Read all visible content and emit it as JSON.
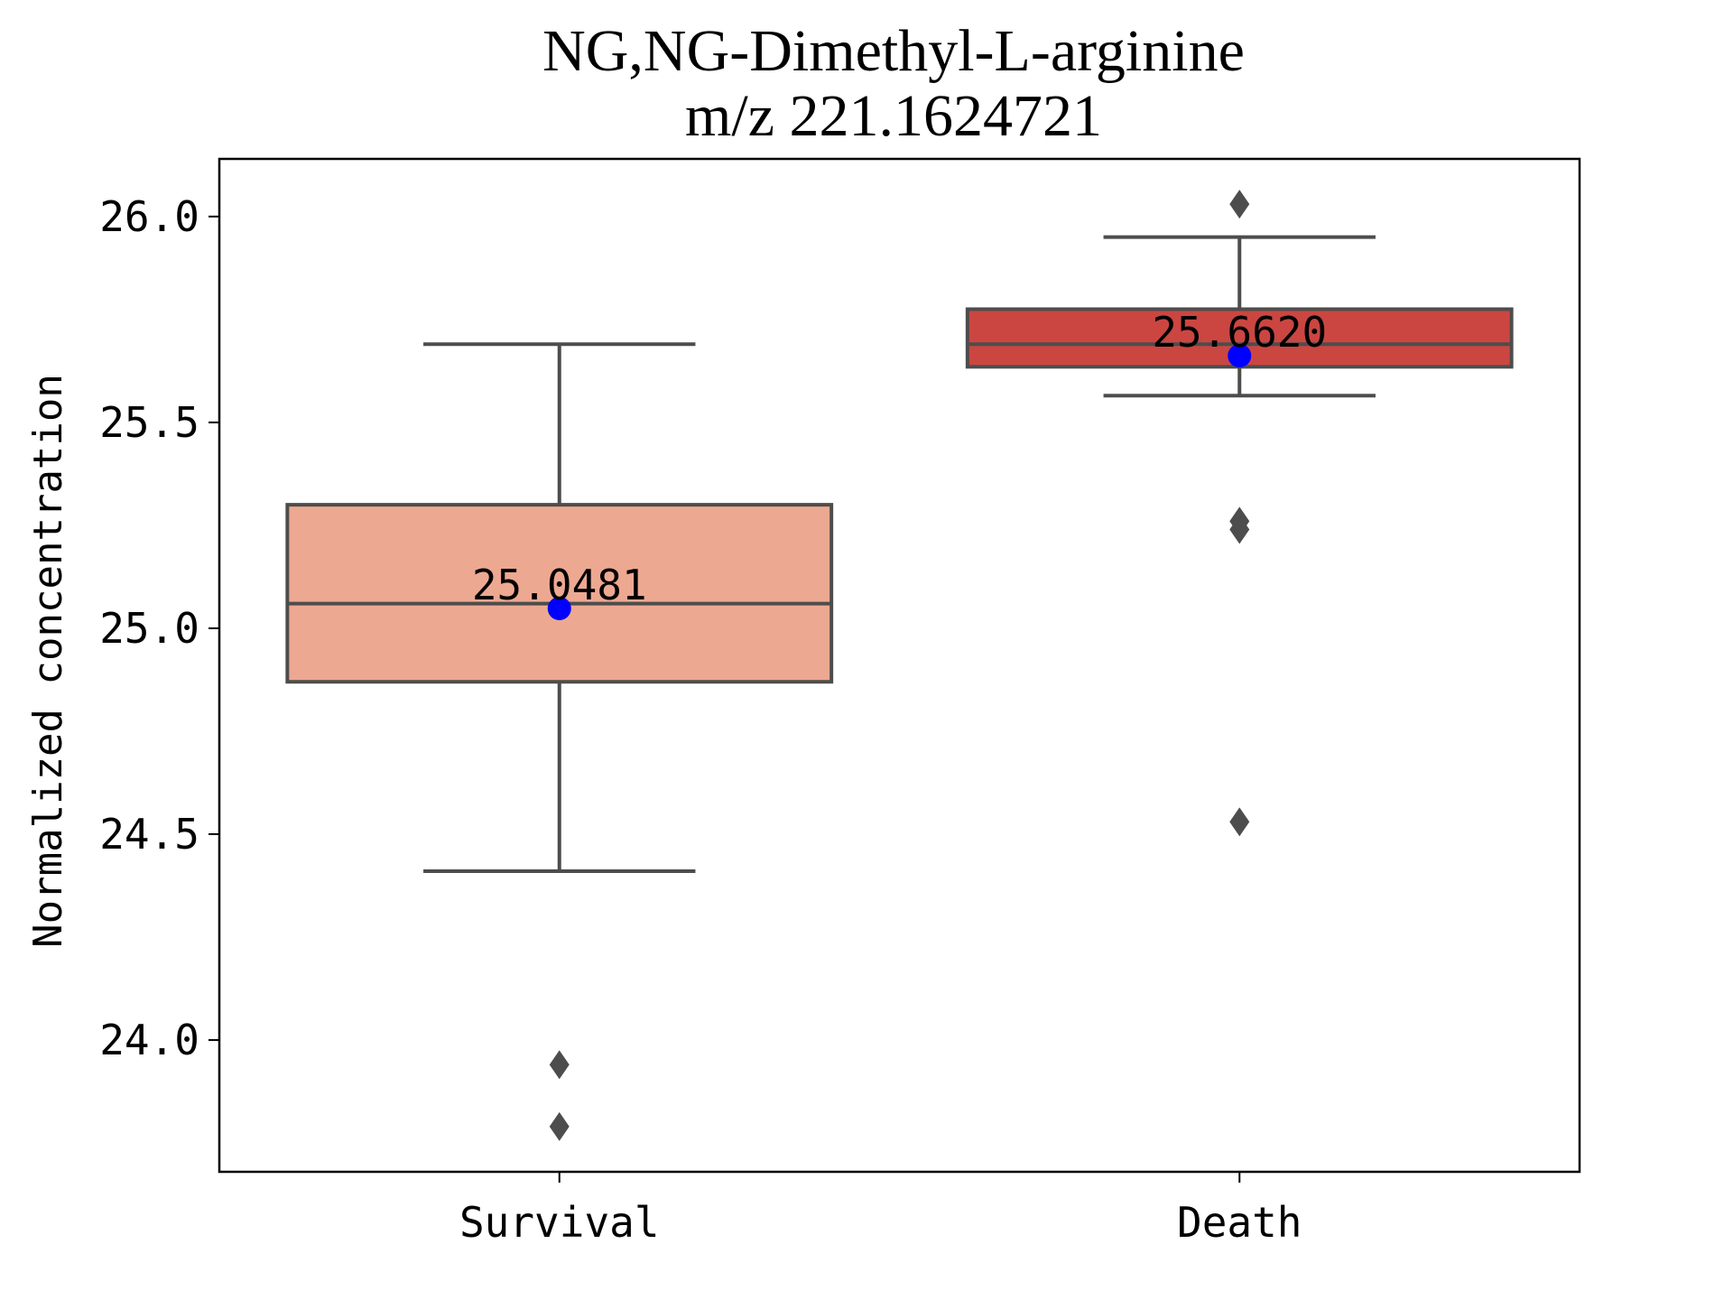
{
  "chart_data": {
    "type": "box",
    "title_line1": "NG,NG-Dimethyl-L-arginine",
    "title_line2": "m/z  221.1624721",
    "xlabel": "",
    "ylabel": "Normalized concentration",
    "ylim": [
      23.68,
      26.14
    ],
    "yticks": [
      24.0,
      24.5,
      25.0,
      25.5,
      26.0
    ],
    "ytick_labels": [
      "24.0",
      "24.5",
      "25.0",
      "25.5",
      "26.0"
    ],
    "grid": false,
    "categories": [
      "Survival",
      "Death"
    ],
    "boxes": [
      {
        "category": "Survival",
        "color": "#EDA891",
        "whisker_low": 24.41,
        "q1": 24.87,
        "median": 25.06,
        "q3": 25.3,
        "whisker_high": 25.69,
        "mean": 25.0481,
        "mean_label": "25.0481",
        "outliers": [
          23.94,
          23.79
        ]
      },
      {
        "category": "Death",
        "color": "#CB4641",
        "whisker_low": 25.565,
        "q1": 25.635,
        "median": 25.69,
        "q3": 25.775,
        "whisker_high": 25.95,
        "mean": 25.662,
        "mean_label": "25.6620",
        "outliers": [
          26.03,
          25.26,
          25.24,
          24.53
        ]
      }
    ],
    "line_color": "#4D4D4D",
    "mean_marker_color": "#0000FF"
  }
}
